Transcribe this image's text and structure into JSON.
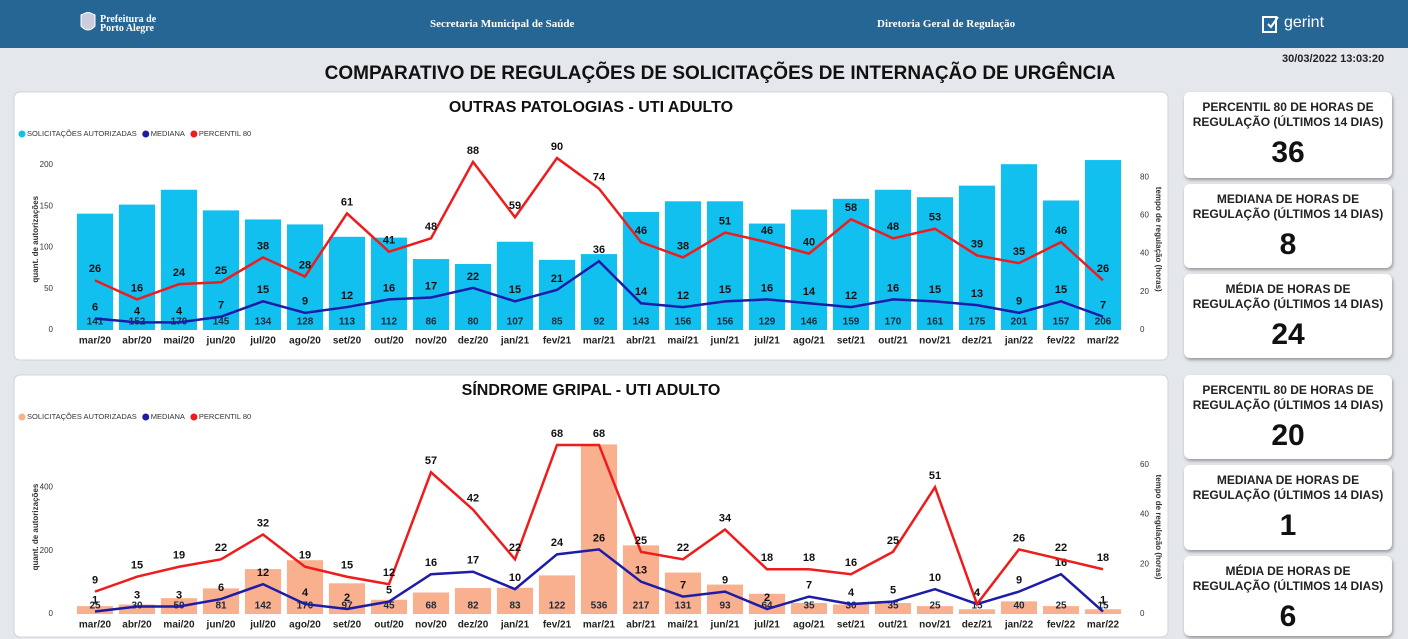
{
  "header": {
    "logo_lines": [
      "Prefeitura de",
      "Porto Alegre"
    ],
    "secretaria": "Secretaria Municipal de Saúde",
    "diretoria": "Diretoria Geral de Regulação",
    "brand": "gerint"
  },
  "timestamp": "30/03/2022 13:03:20",
  "title": "COMPARATIVO DE REGULAÇÕES DE SOLICITAÇÕES DE INTERNAÇÃO DE URGÊNCIA",
  "chart_data": [
    {
      "type": "combo",
      "title": "OUTRAS PATOLOGIAS - UTI ADULTO",
      "legend": "top-left",
      "ylabel": "quant. de autorizações",
      "y2label": "tempo de regulação (horas)",
      "categories": [
        "mar/20",
        "abr/20",
        "mai/20",
        "jun/20",
        "jul/20",
        "ago/20",
        "set/20",
        "out/20",
        "nov/20",
        "dez/20",
        "jan/21",
        "fev/21",
        "mar/21",
        "abr/21",
        "mai/21",
        "jun/21",
        "jul/21",
        "ago/21",
        "set/21",
        "out/21",
        "nov/21",
        "dez/21",
        "jan/22",
        "fev/22",
        "mar/22"
      ],
      "ylim": [
        0,
        220
      ],
      "yticks": [
        0,
        50,
        100,
        150,
        200
      ],
      "y2lim": [
        0,
        95
      ],
      "y2ticks": [
        0,
        20,
        40,
        60,
        80
      ],
      "series": [
        {
          "name": "SOLICITAÇÕES AUTORIZADAS",
          "kind": "bar",
          "color": "#12c0f0",
          "values": [
            141,
            152,
            170,
            145,
            134,
            128,
            113,
            112,
            86,
            80,
            107,
            85,
            92,
            143,
            156,
            156,
            129,
            146,
            159,
            170,
            161,
            175,
            201,
            157,
            206
          ]
        },
        {
          "name": "MEDIANA",
          "kind": "line",
          "axis": "y2",
          "color": "#1c1ca8",
          "values": [
            6,
            4,
            4,
            7,
            15,
            9,
            12,
            16,
            17,
            22,
            15,
            21,
            36,
            14,
            12,
            15,
            16,
            14,
            12,
            16,
            15,
            13,
            9,
            15,
            7
          ]
        },
        {
          "name": "PERCENTIL 80",
          "kind": "line",
          "axis": "y2",
          "color": "#ee1c1c",
          "values": [
            26,
            16,
            24,
            25,
            38,
            28,
            61,
            41,
            48,
            88,
            59,
            90,
            74,
            46,
            38,
            51,
            46,
            40,
            58,
            48,
            53,
            39,
            35,
            46,
            26
          ]
        }
      ]
    },
    {
      "type": "combo",
      "title": "SÍNDROME GRIPAL - UTI ADULTO",
      "legend": "top-left",
      "ylabel": "quant. de autorizações",
      "y2label": "tempo de regulação (horas)",
      "categories": [
        "mar/20",
        "abr/20",
        "mai/20",
        "jun/20",
        "jul/20",
        "ago/20",
        "set/20",
        "out/20",
        "nov/20",
        "dez/20",
        "jan/21",
        "fev/21",
        "mar/21",
        "abr/21",
        "mai/21",
        "jun/21",
        "jul/21",
        "ago/21",
        "set/21",
        "out/21",
        "nov/21",
        "dez/21",
        "jan/22",
        "fev/22",
        "mar/22"
      ],
      "ylim": [
        0,
        550
      ],
      "yticks": [
        0,
        200,
        400
      ],
      "y2lim": [
        0,
        70
      ],
      "y2ticks": [
        0,
        20,
        40,
        60
      ],
      "series": [
        {
          "name": "SOLICITAÇÕES AUTORIZADAS",
          "kind": "bar",
          "color": "#f9b08f",
          "values": [
            25,
            30,
            50,
            81,
            142,
            170,
            97,
            45,
            68,
            82,
            83,
            122,
            536,
            217,
            131,
            93,
            64,
            35,
            30,
            35,
            25,
            15,
            40,
            25,
            15
          ]
        },
        {
          "name": "MEDIANA",
          "kind": "line",
          "axis": "y2",
          "color": "#1c1ca8",
          "values": [
            1,
            3,
            3,
            6,
            12,
            4,
            2,
            5,
            16,
            17,
            10,
            24,
            26,
            13,
            7,
            9,
            2,
            7,
            4,
            5,
            10,
            4,
            9,
            16,
            1
          ]
        },
        {
          "name": "PERCENTIL 80",
          "kind": "line",
          "axis": "y2",
          "color": "#ee1c1c",
          "values": [
            9,
            15,
            19,
            22,
            32,
            19,
            15,
            12,
            57,
            42,
            22,
            68,
            68,
            25,
            22,
            34,
            18,
            18,
            16,
            25,
            51,
            4,
            26,
            22,
            18
          ]
        }
      ]
    }
  ],
  "kpi_panels": [
    [
      {
        "label": "PERCENTIL 80 DE HORAS DE REGULAÇÃO (ÚLTIMOS 14 DIAS)",
        "value": "36"
      },
      {
        "label": "MEDIANA DE HORAS DE REGULAÇÃO (ÚLTIMOS 14 DIAS)",
        "value": "8"
      },
      {
        "label": "MÉDIA DE HORAS DE REGULAÇÃO (ÚLTIMOS 14 DIAS)",
        "value": "24"
      }
    ],
    [
      {
        "label": "PERCENTIL 80 DE HORAS DE REGULAÇÃO (ÚLTIMOS 14 DIAS)",
        "value": "20"
      },
      {
        "label": "MEDIANA DE HORAS DE REGULAÇÃO (ÚLTIMOS 14 DIAS)",
        "value": "1"
      },
      {
        "label": "MÉDIA DE HORAS DE REGULAÇÃO (ÚLTIMOS 14 DIAS)",
        "value": "6"
      }
    ]
  ]
}
